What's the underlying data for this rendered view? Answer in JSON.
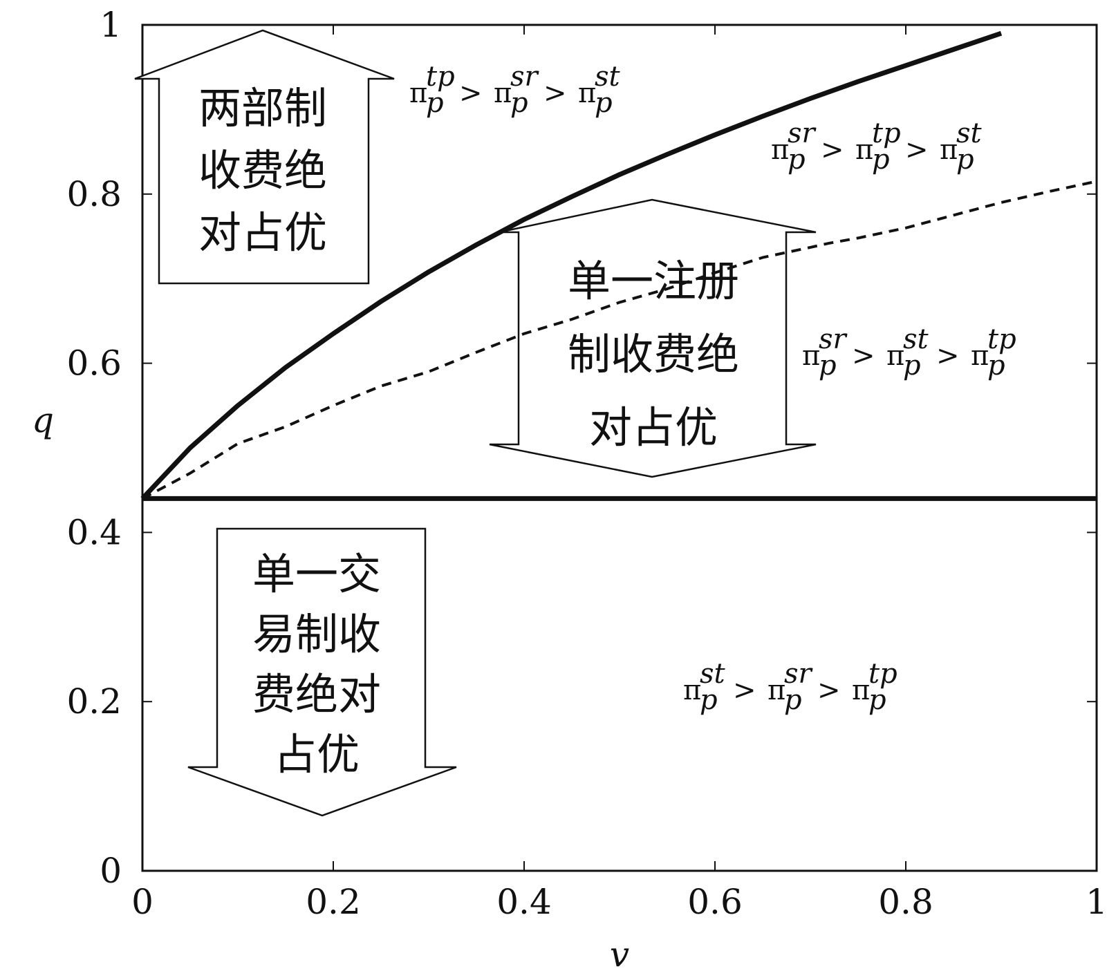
{
  "chart_data": {
    "type": "line",
    "xlabel": "v",
    "ylabel": "q",
    "xlim": [
      0,
      1
    ],
    "ylim": [
      0,
      1
    ],
    "x_ticks": [
      "0",
      "0.2",
      "0.4",
      "0.6",
      "0.8",
      "1"
    ],
    "y_ticks": [
      "0",
      "0.2",
      "0.4",
      "0.6",
      "0.8",
      "1"
    ],
    "grid": false,
    "series": [
      {
        "style": "solid",
        "x": [
          0,
          0.05,
          0.1,
          0.15,
          0.2,
          0.25,
          0.3,
          0.35,
          0.4,
          0.45,
          0.5,
          0.55,
          0.6,
          0.65,
          0.7,
          0.75,
          0.8,
          0.85,
          0.9
        ],
        "y": [
          0.44,
          0.5,
          0.55,
          0.595,
          0.635,
          0.673,
          0.708,
          0.74,
          0.77,
          0.797,
          0.823,
          0.847,
          0.87,
          0.892,
          0.913,
          0.933,
          0.952,
          0.971,
          0.99
        ]
      },
      {
        "style": "dashed",
        "x": [
          0,
          0.05,
          0.1,
          0.15,
          0.2,
          0.25,
          0.3,
          0.35,
          0.4,
          0.45,
          0.5,
          0.55,
          0.6,
          0.65,
          0.7,
          0.72,
          0.75,
          0.8,
          0.85,
          0.9,
          0.95,
          1.0
        ],
        "y": [
          0.44,
          0.47,
          0.505,
          0.525,
          0.55,
          0.573,
          0.59,
          0.613,
          0.635,
          0.652,
          0.672,
          0.688,
          0.707,
          0.725,
          0.737,
          0.742,
          0.748,
          0.76,
          0.775,
          0.79,
          0.803,
          0.815
        ]
      },
      {
        "style": "solid",
        "x": [
          0,
          1
        ],
        "y": [
          0.44,
          0.44
        ]
      }
    ],
    "annotations": [
      {
        "id": "two-part",
        "lines": [
          "两部制",
          "收费绝",
          "对占优"
        ],
        "arrow": "up"
      },
      {
        "id": "single-register",
        "lines": [
          "单一注册",
          "制收费绝",
          "对占优"
        ],
        "arrow": "double"
      },
      {
        "id": "single-transaction",
        "lines": [
          "单一交",
          "易制收",
          "费绝对",
          "占优"
        ],
        "arrow": "down"
      }
    ],
    "inequalities": [
      {
        "id": "ineq-top-left",
        "terms": [
          {
            "pi": "π",
            "sup": "tp",
            "sub": "p"
          },
          {
            "pi": "π",
            "sup": "sr",
            "sub": "p"
          },
          {
            "pi": "π",
            "sup": "st",
            "sub": "p"
          }
        ],
        "gt": ">"
      },
      {
        "id": "ineq-top-right",
        "terms": [
          {
            "pi": "π",
            "sup": "sr",
            "sub": "p"
          },
          {
            "pi": "π",
            "sup": "tp",
            "sub": "p"
          },
          {
            "pi": "π",
            "sup": "st",
            "sub": "p"
          }
        ],
        "gt": ">"
      },
      {
        "id": "ineq-middle",
        "terms": [
          {
            "pi": "π",
            "sup": "sr",
            "sub": "p"
          },
          {
            "pi": "π",
            "sup": "st",
            "sub": "p"
          },
          {
            "pi": "π",
            "sup": "tp",
            "sub": "p"
          }
        ],
        "gt": ">"
      },
      {
        "id": "ineq-bottom",
        "terms": [
          {
            "pi": "π",
            "sup": "st",
            "sub": "p"
          },
          {
            "pi": "π",
            "sup": "sr",
            "sub": "p"
          },
          {
            "pi": "π",
            "sup": "tp",
            "sub": "p"
          }
        ],
        "gt": ">"
      }
    ]
  }
}
